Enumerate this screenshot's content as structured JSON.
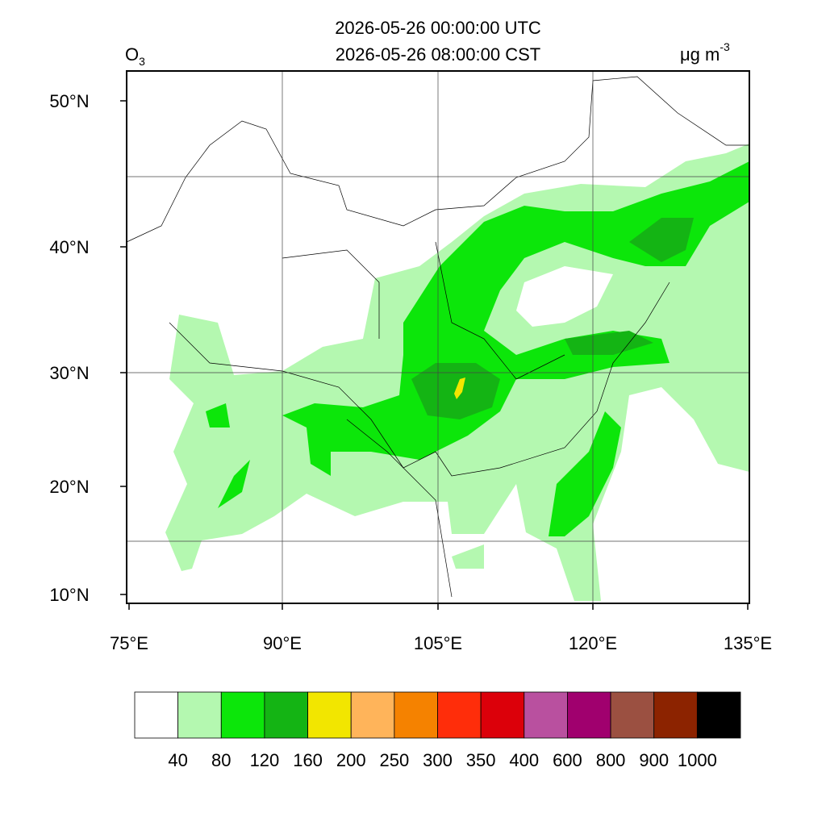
{
  "header": {
    "variable": "O",
    "variable_subscript": "3",
    "title_lines": [
      "2026-05-26 00:00:00 UTC",
      "2026-05-26 08:00:00 CST"
    ],
    "units": "μg m",
    "units_superscript": "-3"
  },
  "map": {
    "lat_labels": [
      "50°N",
      "40°N",
      "30°N",
      "20°N",
      "10°N"
    ],
    "lon_labels": [
      "75°E",
      "90°E",
      "105°E",
      "120°E",
      "135°E"
    ]
  },
  "colorbar": {
    "colors": [
      "#ffffff",
      "#b4f8b0",
      "#0ce60a",
      "#14b414",
      "#f2e600",
      "#ffb45a",
      "#f58200",
      "#ff2d0a",
      "#dc000a",
      "#b9509f",
      "#a0006e",
      "#9b5041",
      "#8c2300",
      "#000000"
    ],
    "labels": [
      "40",
      "80",
      "120",
      "160",
      "200",
      "250",
      "300",
      "350",
      "400",
      "600",
      "800",
      "900",
      "1000"
    ]
  }
}
